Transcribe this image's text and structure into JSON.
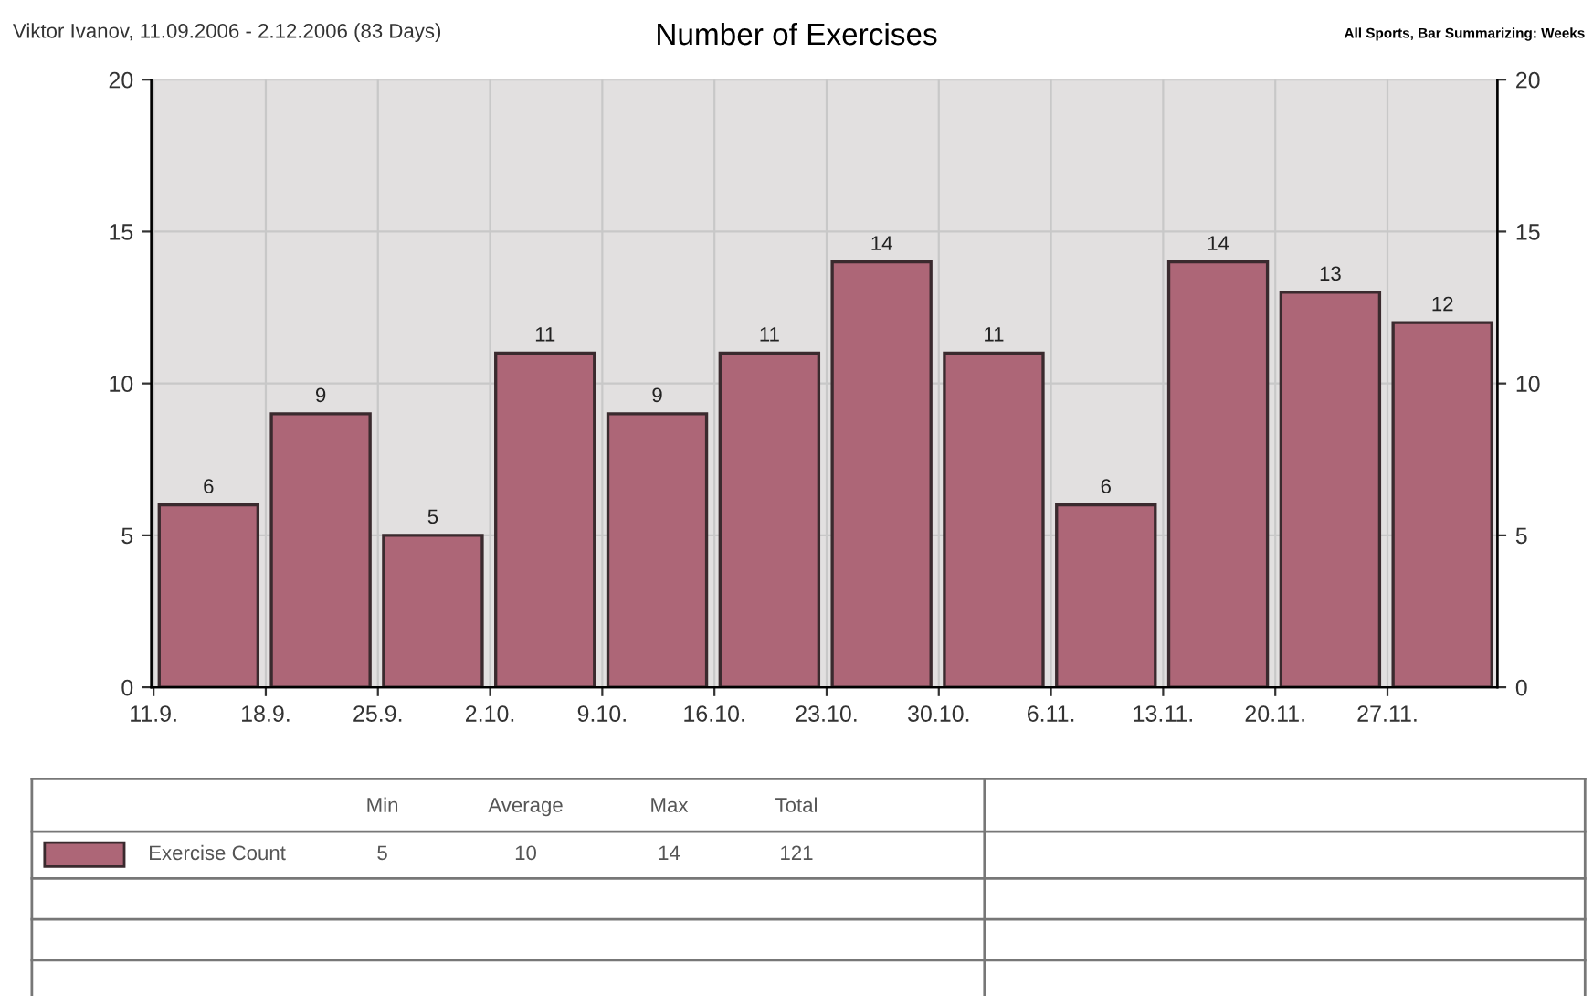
{
  "chart_data": {
    "type": "bar",
    "title": "Number of Exercises",
    "subtitle": "Viktor Ivanov, 11.09.2006 - 2.12.2006 (83 Days)",
    "annotations": [
      "All Sports, Bar Summarizing: Weeks",
      "Min",
      "Average",
      "Max",
      "Total",
      "5",
      "10",
      "14",
      "121"
    ],
    "categories": [
      "11.9.",
      "18.9.",
      "25.9.",
      "2.10.",
      "9.10.",
      "16.10.",
      "23.10.",
      "30.10.",
      "6.11.",
      "13.11.",
      "20.11.",
      "27.11."
    ],
    "series": [
      {
        "name": "Exercise Count",
        "color": "#ad6677",
        "values": [
          6,
          9,
          5,
          11,
          9,
          11,
          14,
          11,
          6,
          14,
          13,
          12
        ]
      }
    ],
    "ylim": [
      0,
      20
    ],
    "yticks": [
      0,
      5,
      10,
      15,
      20
    ],
    "y2lim": [
      0,
      20
    ],
    "y2ticks": [
      0,
      5,
      10,
      15,
      20
    ],
    "grid": true,
    "data_labels": true,
    "legend": "bottom"
  }
}
